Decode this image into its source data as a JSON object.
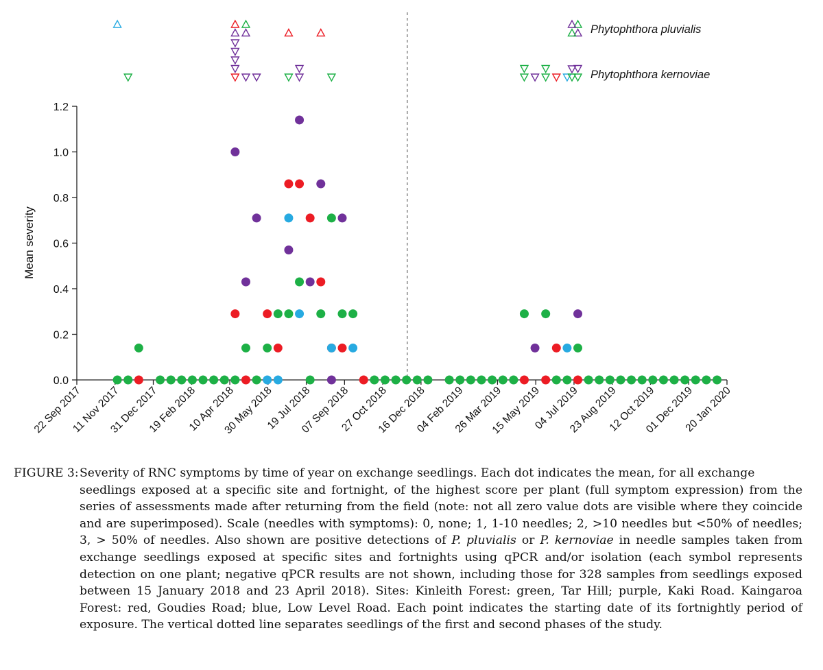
{
  "chart_data": {
    "type": "scatter",
    "title": "",
    "ylabel": "Mean severity",
    "xlabel": "",
    "ylim": [
      0,
      1.2
    ],
    "yticks": [
      "0.0",
      "0.2",
      "0.4",
      "0.6",
      "0.8",
      "1.0",
      "1.2"
    ],
    "x_start": "2017-09-22",
    "x_end": "2020-01-20",
    "xticks": [
      {
        "label": "22 Sep 2017",
        "date": "2017-09-22"
      },
      {
        "label": "11 Nov 2017",
        "date": "2017-11-11"
      },
      {
        "label": "31 Dec 2017",
        "date": "2017-12-31"
      },
      {
        "label": "19 Feb 2018",
        "date": "2018-02-19"
      },
      {
        "label": "10 Apr 2018",
        "date": "2018-04-10"
      },
      {
        "label": "30 May 2018",
        "date": "2018-05-30"
      },
      {
        "label": "19 Jul 2018",
        "date": "2018-07-19"
      },
      {
        "label": "07 Sep 2018",
        "date": "2018-09-07"
      },
      {
        "label": "27 Oct 2018",
        "date": "2018-10-27"
      },
      {
        "label": "16 Dec 2018",
        "date": "2018-12-16"
      },
      {
        "label": "04 Feb 2019",
        "date": "2019-02-04"
      },
      {
        "label": "26 Mar 2019",
        "date": "2019-03-26"
      },
      {
        "label": "15 May 2019",
        "date": "2019-05-15"
      },
      {
        "label": "04 Jul 2019",
        "date": "2019-07-04"
      },
      {
        "label": "23 Aug 2019",
        "date": "2019-08-23"
      },
      {
        "label": "12 Oct 2019",
        "date": "2019-10-12"
      },
      {
        "label": "01 Dec 2019",
        "date": "2019-12-01"
      },
      {
        "label": "20 Jan 2020",
        "date": "2020-01-20"
      }
    ],
    "phase_divider_date": "2018-11-28",
    "site_colors": {
      "green": "#1db046",
      "purple": "#70319a",
      "red": "#ec1c24",
      "blue": "#27aae1"
    },
    "series": [
      {
        "color": "green",
        "points": [
          [
            "2017-11-14",
            0
          ],
          [
            "2017-11-28",
            0
          ],
          [
            "2017-12-12",
            0.14
          ],
          [
            "2018-01-09",
            0
          ],
          [
            "2018-01-23",
            0
          ],
          [
            "2018-02-06",
            0
          ],
          [
            "2018-02-20",
            0
          ],
          [
            "2018-03-06",
            0
          ],
          [
            "2018-03-20",
            0
          ],
          [
            "2018-04-03",
            0
          ],
          [
            "2018-04-17",
            0
          ],
          [
            "2018-05-01",
            0.14
          ],
          [
            "2018-05-15",
            0
          ],
          [
            "2018-05-29",
            0.14
          ],
          [
            "2018-06-12",
            0.29
          ],
          [
            "2018-06-26",
            0.29
          ],
          [
            "2018-07-10",
            0.43
          ],
          [
            "2018-07-24",
            0
          ],
          [
            "2018-08-07",
            0.29
          ],
          [
            "2018-08-21",
            0.71
          ],
          [
            "2018-09-04",
            0.29
          ],
          [
            "2018-09-18",
            0.29
          ],
          [
            "2018-10-16",
            0
          ],
          [
            "2018-10-30",
            0
          ],
          [
            "2018-11-13",
            0
          ],
          [
            "2018-11-27",
            0
          ],
          [
            "2018-12-11",
            0
          ],
          [
            "2018-12-25",
            0
          ],
          [
            "2019-01-22",
            0
          ],
          [
            "2019-02-05",
            0
          ],
          [
            "2019-02-19",
            0
          ],
          [
            "2019-03-05",
            0
          ],
          [
            "2019-03-19",
            0
          ],
          [
            "2019-04-02",
            0
          ],
          [
            "2019-04-16",
            0
          ],
          [
            "2019-04-30",
            0.29
          ],
          [
            "2019-05-28",
            0.29
          ],
          [
            "2019-06-11",
            0
          ],
          [
            "2019-06-25",
            0
          ],
          [
            "2019-07-09",
            0.14
          ],
          [
            "2019-07-23",
            0
          ],
          [
            "2019-08-06",
            0
          ],
          [
            "2019-08-20",
            0
          ],
          [
            "2019-09-03",
            0
          ],
          [
            "2019-09-17",
            0
          ],
          [
            "2019-10-01",
            0
          ],
          [
            "2019-10-15",
            0
          ],
          [
            "2019-10-29",
            0
          ],
          [
            "2019-11-12",
            0
          ],
          [
            "2019-11-26",
            0
          ],
          [
            "2019-12-10",
            0
          ],
          [
            "2019-12-24",
            0
          ],
          [
            "2020-01-07",
            0
          ]
        ]
      },
      {
        "color": "purple",
        "points": [
          [
            "2018-04-17",
            1.0
          ],
          [
            "2018-05-01",
            0.43
          ],
          [
            "2018-05-15",
            0.71
          ],
          [
            "2018-06-26",
            0.57
          ],
          [
            "2018-07-10",
            1.14
          ],
          [
            "2018-07-24",
            0.43
          ],
          [
            "2018-08-07",
            0.86
          ],
          [
            "2018-08-21",
            0
          ],
          [
            "2018-09-04",
            0.71
          ],
          [
            "2019-05-14",
            0.14
          ],
          [
            "2019-07-09",
            0.29
          ]
        ]
      },
      {
        "color": "red",
        "points": [
          [
            "2017-12-12",
            0
          ],
          [
            "2018-04-17",
            0.29
          ],
          [
            "2018-05-01",
            0
          ],
          [
            "2018-05-29",
            0.29
          ],
          [
            "2018-06-12",
            0.14
          ],
          [
            "2018-06-26",
            0.86
          ],
          [
            "2018-07-10",
            0.86
          ],
          [
            "2018-07-24",
            0.71
          ],
          [
            "2018-08-07",
            0.43
          ],
          [
            "2018-08-21",
            0.14
          ],
          [
            "2018-09-04",
            0.14
          ],
          [
            "2018-10-02",
            0
          ],
          [
            "2019-04-30",
            0
          ],
          [
            "2019-05-28",
            0
          ],
          [
            "2019-06-11",
            0.14
          ],
          [
            "2019-07-09",
            0
          ]
        ]
      },
      {
        "color": "blue",
        "points": [
          [
            "2018-05-29",
            0
          ],
          [
            "2018-06-12",
            0
          ],
          [
            "2018-06-26",
            0.71
          ],
          [
            "2018-07-10",
            0.29
          ],
          [
            "2018-08-21",
            0.14
          ],
          [
            "2018-09-18",
            0.14
          ],
          [
            "2019-06-25",
            0.14
          ]
        ]
      }
    ],
    "detections": {
      "pluvialis": [
        [
          "2017-11-14",
          "blue",
          1
        ],
        [
          "2018-04-17",
          "purple",
          2
        ],
        [
          "2018-04-17",
          "red",
          1
        ],
        [
          "2018-05-01",
          "purple",
          2
        ],
        [
          "2018-05-01",
          "green",
          1
        ],
        [
          "2018-06-26",
          "red",
          2
        ],
        [
          "2018-08-07",
          "red",
          2
        ],
        [
          "2019-07-09",
          "purple",
          2
        ],
        [
          "2019-07-09",
          "green",
          1
        ]
      ],
      "kernoviae": [
        [
          "2017-11-28",
          "green",
          1
        ],
        [
          "2018-04-17",
          "red",
          1
        ],
        [
          "2018-04-17",
          "purple",
          2
        ],
        [
          "2018-04-17",
          "purple",
          3
        ],
        [
          "2018-04-17",
          "purple",
          4
        ],
        [
          "2018-04-17",
          "purple",
          5
        ],
        [
          "2018-05-01",
          "purple",
          1
        ],
        [
          "2018-05-15",
          "purple",
          1
        ],
        [
          "2018-06-26",
          "green",
          1
        ],
        [
          "2018-07-10",
          "purple",
          1
        ],
        [
          "2018-07-10",
          "purple",
          2
        ],
        [
          "2018-08-21",
          "green",
          1
        ],
        [
          "2019-04-30",
          "green",
          1
        ],
        [
          "2019-04-30",
          "green",
          2
        ],
        [
          "2019-05-14",
          "purple",
          1
        ],
        [
          "2019-05-28",
          "green",
          1
        ],
        [
          "2019-05-28",
          "green",
          2
        ],
        [
          "2019-06-11",
          "red",
          1
        ],
        [
          "2019-06-25",
          "blue",
          1
        ],
        [
          "2019-07-09",
          "green",
          1
        ],
        [
          "2019-07-09",
          "purple",
          2
        ]
      ]
    },
    "legend": {
      "pluvialis": "Phytophthora pluvialis",
      "kernoviae": "Phytophthora kernoviae",
      "placement": "top-right"
    }
  },
  "caption": {
    "label": "FIGURE 3:",
    "line1": "Severity of RNC symptoms by time of year on exchange seedlings. Each dot indicates the mean, for all exchange",
    "text_a": "seedlings exposed at a specific site and fortnight, of the highest score per plant (full symptom expression) from the series of assessments made after returning from the field (note: not all zero value dots are visible where they coincide and are superimposed). Scale (needles with symptoms): 0, none; 1, 1-10 needles; 2, >10 needles but <50% of needles; 3, > 50% of needles. Also shown are positive detections of ",
    "species_a": "P. pluvialis",
    "text_b": " or ",
    "species_b": "P. kernoviae",
    "text_c": " in needle samples taken from exchange seedlings exposed at specific sites and fortnights using qPCR and/or isolation (each symbol represents detection on one plant; negative qPCR results are not shown, including those for 328 samples from seedlings exposed between 15 January 2018 and 23 April 2018). Sites: Kinleith Forest: green, Tar Hill; purple, Kaki Road. Kaingaroa Forest: red, Goudies Road; blue, Low Level Road. Each point indicates the starting date of its fortnightly period of exposure. The vertical dotted line separates seedlings of the first and second phases of the study."
  }
}
